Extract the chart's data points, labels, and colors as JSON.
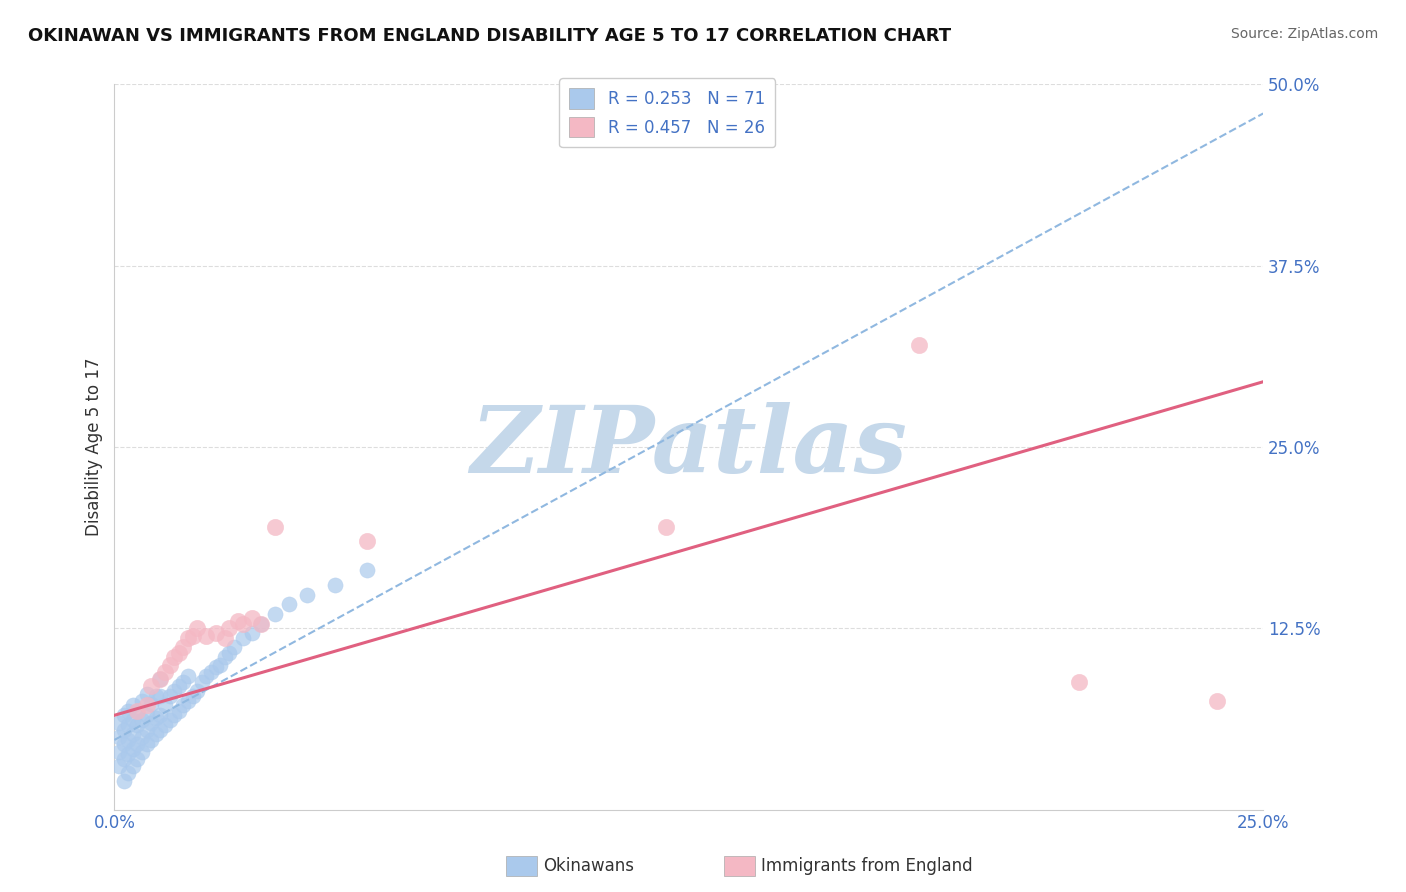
{
  "title": "OKINAWAN VS IMMIGRANTS FROM ENGLAND DISABILITY AGE 5 TO 17 CORRELATION CHART",
  "source": "Source: ZipAtlas.com",
  "ylabel": "Disability Age 5 to 17",
  "xlim": [
    0.0,
    0.25
  ],
  "ylim": [
    0.0,
    0.5
  ],
  "ytick_positions": [
    0.0,
    0.125,
    0.25,
    0.375,
    0.5
  ],
  "ytick_labels": [
    "",
    "12.5%",
    "25.0%",
    "37.5%",
    "50.0%"
  ],
  "grid_color": "#dddddd",
  "background_color": "#ffffff",
  "watermark": "ZIPatlas",
  "watermark_color": "#c5d8ea",
  "series1_color": "#aac9ec",
  "series1_edge": "#aac9ec",
  "series2_color": "#f4b8c4",
  "series2_edge": "#f4b8c4",
  "trendline1_color": "#90b8e0",
  "trendline2_color": "#e06080",
  "R1": 0.253,
  "N1": 71,
  "R2": 0.457,
  "N2": 26,
  "series1_label": "Okinawans",
  "series2_label": "Immigrants from England",
  "okinawan_x": [
    0.001,
    0.001,
    0.001,
    0.001,
    0.002,
    0.002,
    0.002,
    0.002,
    0.002,
    0.003,
    0.003,
    0.003,
    0.003,
    0.003,
    0.004,
    0.004,
    0.004,
    0.004,
    0.004,
    0.005,
    0.005,
    0.005,
    0.005,
    0.006,
    0.006,
    0.006,
    0.006,
    0.007,
    0.007,
    0.007,
    0.007,
    0.008,
    0.008,
    0.008,
    0.009,
    0.009,
    0.009,
    0.01,
    0.01,
    0.01,
    0.01,
    0.011,
    0.011,
    0.012,
    0.012,
    0.013,
    0.013,
    0.014,
    0.014,
    0.015,
    0.015,
    0.016,
    0.016,
    0.017,
    0.018,
    0.019,
    0.02,
    0.021,
    0.022,
    0.023,
    0.024,
    0.025,
    0.026,
    0.028,
    0.03,
    0.032,
    0.035,
    0.038,
    0.042,
    0.048,
    0.055
  ],
  "okinawan_y": [
    0.03,
    0.04,
    0.05,
    0.06,
    0.02,
    0.035,
    0.045,
    0.055,
    0.065,
    0.025,
    0.038,
    0.048,
    0.058,
    0.068,
    0.03,
    0.042,
    0.052,
    0.062,
    0.072,
    0.035,
    0.045,
    0.058,
    0.068,
    0.04,
    0.05,
    0.062,
    0.075,
    0.045,
    0.055,
    0.065,
    0.08,
    0.048,
    0.06,
    0.073,
    0.052,
    0.063,
    0.078,
    0.055,
    0.065,
    0.078,
    0.09,
    0.058,
    0.072,
    0.062,
    0.078,
    0.065,
    0.082,
    0.068,
    0.085,
    0.072,
    0.088,
    0.075,
    0.092,
    0.078,
    0.082,
    0.088,
    0.092,
    0.095,
    0.098,
    0.1,
    0.105,
    0.108,
    0.112,
    0.118,
    0.122,
    0.128,
    0.135,
    0.142,
    0.148,
    0.155,
    0.165
  ],
  "england_x": [
    0.005,
    0.007,
    0.008,
    0.01,
    0.011,
    0.012,
    0.013,
    0.014,
    0.015,
    0.016,
    0.017,
    0.018,
    0.02,
    0.022,
    0.024,
    0.025,
    0.027,
    0.028,
    0.03,
    0.032,
    0.035,
    0.055,
    0.12,
    0.175,
    0.21,
    0.24
  ],
  "england_y": [
    0.068,
    0.072,
    0.085,
    0.09,
    0.095,
    0.1,
    0.105,
    0.108,
    0.112,
    0.118,
    0.12,
    0.125,
    0.12,
    0.122,
    0.118,
    0.125,
    0.13,
    0.128,
    0.132,
    0.128,
    0.195,
    0.185,
    0.195,
    0.32,
    0.088,
    0.075
  ],
  "trendline1_x0": 0.0,
  "trendline1_y0": 0.048,
  "trendline1_x1": 0.25,
  "trendline1_y1": 0.48,
  "trendline2_x0": 0.0,
  "trendline2_y0": 0.065,
  "trendline2_x1": 0.25,
  "trendline2_y1": 0.295
}
